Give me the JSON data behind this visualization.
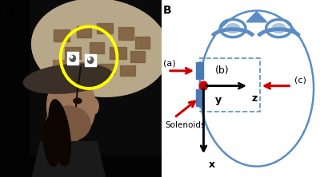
{
  "panel_A_label": "A",
  "panel_B_label": "B",
  "bg_color": "#ffffff",
  "head_color": "#5b8dc4",
  "head_outline_color": "#5b8dc4",
  "dashed_rect_color": "#5b8dc4",
  "solenoid_color": "#4a7ab5",
  "arrow_color": "#cc0000",
  "axis_color": "#000000",
  "dot_color": "#cc0000",
  "label_a": "(a)",
  "label_b": "(b)",
  "label_c": "(c)",
  "label_x": "x",
  "label_y": "y",
  "label_z": "z",
  "solenoids_label": "Solenoids"
}
